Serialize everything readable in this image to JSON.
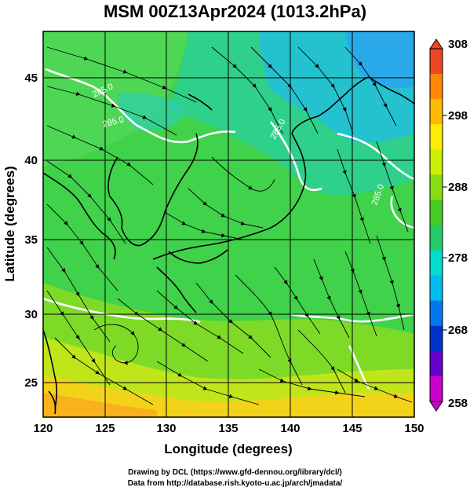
{
  "title": "MSM 00Z13Apr2024 (1013.2hPa)",
  "map": {
    "type": "streamline-temperature-map",
    "xlabel": "Longitude (degrees)",
    "ylabel": "Latitude  (degrees)",
    "xlim": [
      120,
      150
    ],
    "ylim": [
      22.4,
      47.6
    ],
    "x_ticks": [
      "120",
      "125",
      "130",
      "135",
      "140",
      "145",
      "150"
    ],
    "y_ticks": [
      "25",
      "30",
      "35",
      "40",
      "45"
    ],
    "grid": true,
    "contour_labels": [
      "285.0",
      "285.0",
      "285.0",
      "285.0"
    ]
  },
  "colorbar": {
    "range": [
      258,
      308
    ],
    "tick_labels": [
      "308",
      "298",
      "288",
      "278",
      "268",
      "258"
    ],
    "colors": [
      "#cc00cc",
      "#6600cc",
      "#0033cc",
      "#0077ee",
      "#00bbee",
      "#00ddcc",
      "#22cc66",
      "#44cc22",
      "#88dd11",
      "#ccee00",
      "#ffee00",
      "#ffbb00",
      "#ff8800",
      "#ee4422"
    ]
  },
  "credits": {
    "line1": "Drawing by DCL (https://www.gfd-dennou.org/library/dcl/)",
    "line2": "Data from http://database.rish.kyoto-u.ac.jp/arch/jmadata/"
  }
}
